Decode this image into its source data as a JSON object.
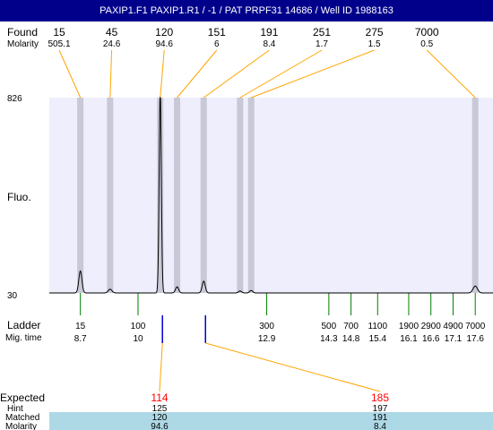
{
  "header": {
    "title": "PAXIP1.F1  PAXIP1.R1 / -1 / PAT PRPF31 14686 / Well ID 1988163"
  },
  "labels": {
    "found": "Found",
    "molarity": "Molarity",
    "fluo": "Fluo.",
    "ladder": "Ladder",
    "mig_time": "Mig. time",
    "expected": "Expected",
    "hint": "Hint",
    "matched": "Matched",
    "molarity_bottom": "Molarity"
  },
  "colors": {
    "header_bg": "#00008b",
    "plot_bg": "#eeeefc",
    "peak_band": "#c8c8d6",
    "leader": "#ffa500",
    "ladder_tick": "#008000",
    "expected_text": "#ff0000",
    "expected_marker": "#0000cd",
    "match_band": "#add8e6"
  },
  "chart_data": {
    "type": "line",
    "ylabel": "Fluo.",
    "ylim": [
      30,
      826
    ],
    "y_ticks": [
      "826",
      "30"
    ],
    "found_peaks": [
      {
        "size": "15",
        "molarity": "505.1",
        "mig_time": 8.7
      },
      {
        "size": "45",
        "molarity": "24.6",
        "mig_time": 9.37
      },
      {
        "size": "120",
        "molarity": "94.6",
        "mig_time": 10.5
      },
      {
        "size": "151",
        "molarity": "6",
        "mig_time": 10.88
      },
      {
        "size": "191",
        "molarity": "8.4",
        "mig_time": 11.48
      },
      {
        "size": "251",
        "molarity": "1.7",
        "mig_time": 12.3
      },
      {
        "size": "275",
        "molarity": "1.5",
        "mig_time": 12.55
      },
      {
        "size": "7000",
        "molarity": "0.5",
        "mig_time": 17.6
      }
    ],
    "ladder": [
      {
        "size": "15",
        "time": "8.7",
        "t": 8.7
      },
      {
        "size": "100",
        "time": "10",
        "t": 10.0
      },
      {
        "size": "300",
        "time": "12.9",
        "t": 12.9
      },
      {
        "size": "500",
        "time": "14.3",
        "t": 14.3
      },
      {
        "size": "700",
        "time": "14.8",
        "t": 14.8
      },
      {
        "size": "1100",
        "time": "15.4",
        "t": 15.4
      },
      {
        "size": "1900",
        "time": "16.1",
        "t": 16.1
      },
      {
        "size": "2900",
        "time": "16.6",
        "t": 16.6
      },
      {
        "size": "4900",
        "time": "17.1",
        "t": 17.1
      },
      {
        "size": "7000",
        "time": "17.6",
        "t": 17.6
      }
    ],
    "trace": [
      {
        "t": 8.7,
        "h": 90,
        "w": 0.05
      },
      {
        "t": 9.37,
        "h": 15,
        "w": 0.06
      },
      {
        "t": 10.5,
        "h": 826,
        "w": 0.035
      },
      {
        "t": 10.88,
        "h": 25,
        "w": 0.05
      },
      {
        "t": 11.48,
        "h": 48,
        "w": 0.05
      },
      {
        "t": 12.3,
        "h": 8,
        "w": 0.05
      },
      {
        "t": 12.55,
        "h": 10,
        "w": 0.05
      },
      {
        "t": 17.6,
        "h": 28,
        "w": 0.07
      }
    ],
    "expected": [
      {
        "expected": "114",
        "hint": "125",
        "matched": "120",
        "molarity": "94.6",
        "t": 10.55
      },
      {
        "expected": "185",
        "hint": "197",
        "matched": "191",
        "molarity": "8.4",
        "t": 11.52
      }
    ]
  }
}
